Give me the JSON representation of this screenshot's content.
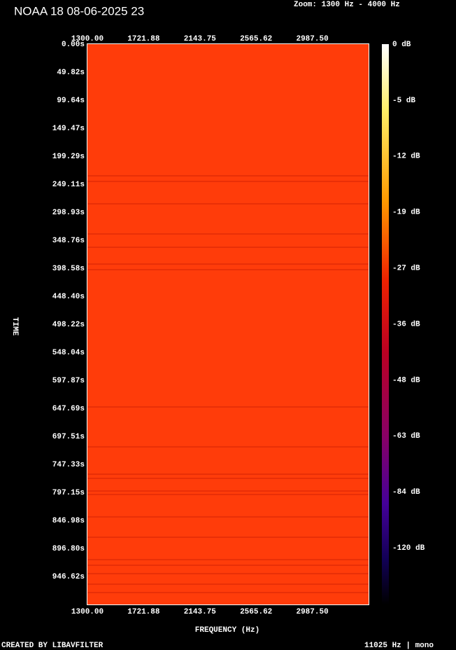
{
  "title": "NOAA 18 08-06-2025 23",
  "zoom": "Zoom: 1300 Hz - 4000 Hz",
  "frequency_labels": [
    "1300.00",
    "1721.88",
    "2143.75",
    "2565.62",
    "2987.50"
  ],
  "time_labels": [
    "0.00s",
    "49.82s",
    "99.64s",
    "149.47s",
    "199.29s",
    "249.11s",
    "298.93s",
    "348.76s",
    "398.58s",
    "448.40s",
    "498.22s",
    "548.04s",
    "597.87s",
    "647.69s",
    "697.51s",
    "747.33s",
    "797.15s",
    "846.98s",
    "896.80s",
    "946.62s"
  ],
  "db_labels": [
    "0 dB",
    "-5 dB",
    "-12 dB",
    "-19 dB",
    "-27 dB",
    "-36 dB",
    "-48 dB",
    "-63 dB",
    "-84 dB",
    "-120 dB"
  ],
  "y_axis_label": "TIME",
  "x_axis_label": "FREQUENCY (Hz)",
  "footer_left": "CREATED BY LIBAVFILTER",
  "footer_right": "11025 Hz | mono"
}
